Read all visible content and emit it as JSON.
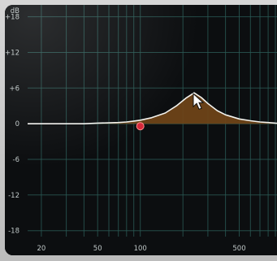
{
  "eq": {
    "db_unit": "dB",
    "db_ticks": [
      18,
      12,
      6,
      0,
      -6,
      -12,
      -18
    ],
    "db_tick_labels": [
      "+18",
      "+12",
      "+6",
      "0",
      "-6",
      "-12",
      "-18"
    ],
    "freq_ticks": [
      20,
      50,
      100,
      500
    ],
    "freq_tick_labels": [
      "20",
      "50",
      "100",
      "500"
    ],
    "freq_gridlines": [
      20,
      30,
      40,
      50,
      60,
      70,
      80,
      90,
      100,
      200,
      300,
      400,
      500,
      600,
      700,
      800,
      900
    ],
    "x_range_hz": [
      16,
      1000
    ],
    "y_range_db": [
      -19,
      20
    ],
    "band": {
      "frequency_hz": 240,
      "gain_db": 5.2,
      "handle_frequency_hz": 100,
      "handle_gain_db": 0
    },
    "curve": {
      "x": [
        16,
        20,
        30,
        40,
        50,
        60,
        70,
        80,
        90,
        100,
        120,
        150,
        180,
        210,
        240,
        270,
        300,
        350,
        400,
        500,
        600,
        700,
        800,
        900,
        1000
      ],
      "y": [
        0,
        0,
        0,
        0,
        0.1,
        0.15,
        0.2,
        0.3,
        0.45,
        0.6,
        1.0,
        1.8,
        3.0,
        4.3,
        5.2,
        4.4,
        3.4,
        2.2,
        1.5,
        0.8,
        0.5,
        0.3,
        0.2,
        0.1,
        0.05
      ]
    },
    "colors": {
      "background": "#0c0e10",
      "grid": "#2a5a55",
      "fill": "#6e4318",
      "curve": "#f2f2ee",
      "handle": "#d6283a",
      "text": "#bfc7c7"
    },
    "cursor_icon": "arrow-cursor-icon"
  }
}
